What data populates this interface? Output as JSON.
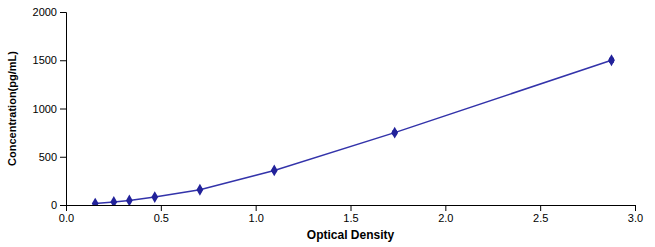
{
  "chart_data": {
    "type": "line",
    "xlabel": "Optical Density",
    "ylabel": "Concentration(pg/mL)",
    "x": [
      0.154,
      0.252,
      0.334,
      0.468,
      0.706,
      1.098,
      1.733,
      2.876
    ],
    "series": [
      {
        "type": "line",
        "color": "#3333AA",
        "values": [
          15,
          32,
          47,
          82,
          158,
          358,
          750,
          1500
        ]
      },
      {
        "type": "scatter",
        "color": "#22229A",
        "marker": "diamond",
        "values": [
          15,
          32,
          47,
          82,
          158,
          358,
          750,
          1500
        ],
        "xerr": [
          0.004,
          0.004,
          0.004,
          0.005,
          0.006,
          0.007,
          0.009,
          0.01
        ],
        "yerr": [
          3,
          4,
          4,
          5,
          6,
          9,
          12,
          15
        ]
      }
    ],
    "xlim": [
      0.0,
      3.0
    ],
    "ylim": [
      0,
      2000
    ],
    "xticks": [
      {
        "value": 0,
        "label": "0.0"
      },
      0.5,
      {
        "value": 1.0,
        "label": "1.0"
      },
      1.5,
      {
        "value": 2.0,
        "label": "2.0"
      },
      2.5,
      {
        "value": 3.0,
        "label": "3.0"
      }
    ],
    "yticks": [
      0,
      500,
      1000,
      1500,
      2000
    ],
    "grid": false
  }
}
